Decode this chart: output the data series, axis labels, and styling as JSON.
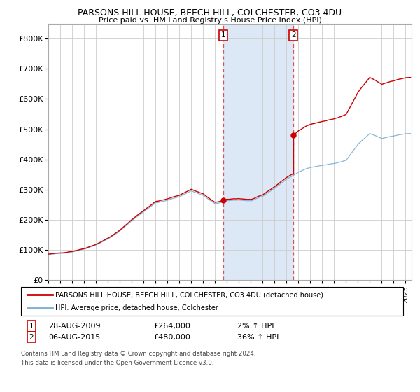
{
  "title": "PARSONS HILL HOUSE, BEECH HILL, COLCHESTER, CO3 4DU",
  "subtitle": "Price paid vs. HM Land Registry's House Price Index (HPI)",
  "ylim": [
    0,
    850000
  ],
  "yticks": [
    0,
    100000,
    200000,
    300000,
    400000,
    500000,
    600000,
    700000,
    800000
  ],
  "ytick_labels": [
    "£0",
    "£100K",
    "£200K",
    "£300K",
    "£400K",
    "£500K",
    "£600K",
    "£700K",
    "£800K"
  ],
  "background_color": "#ffffff",
  "plot_bg_color": "#ffffff",
  "grid_color": "#cccccc",
  "hpi_line_color": "#7bafd4",
  "price_line_color": "#cc0000",
  "sale1_x": 2009.67,
  "sale1_price": 264000,
  "sale2_x": 2015.58,
  "sale2_price": 480000,
  "sale_shade_color": "#dce8f5",
  "sale_vline_color": "#e05050",
  "legend_line1": "PARSONS HILL HOUSE, BEECH HILL, COLCHESTER, CO3 4DU (detached house)",
  "legend_line2": "HPI: Average price, detached house, Colchester",
  "footnote": "Contains HM Land Registry data © Crown copyright and database right 2024.\nThis data is licensed under the Open Government Licence v3.0.",
  "xmin": 1995.0,
  "xmax": 2025.5
}
